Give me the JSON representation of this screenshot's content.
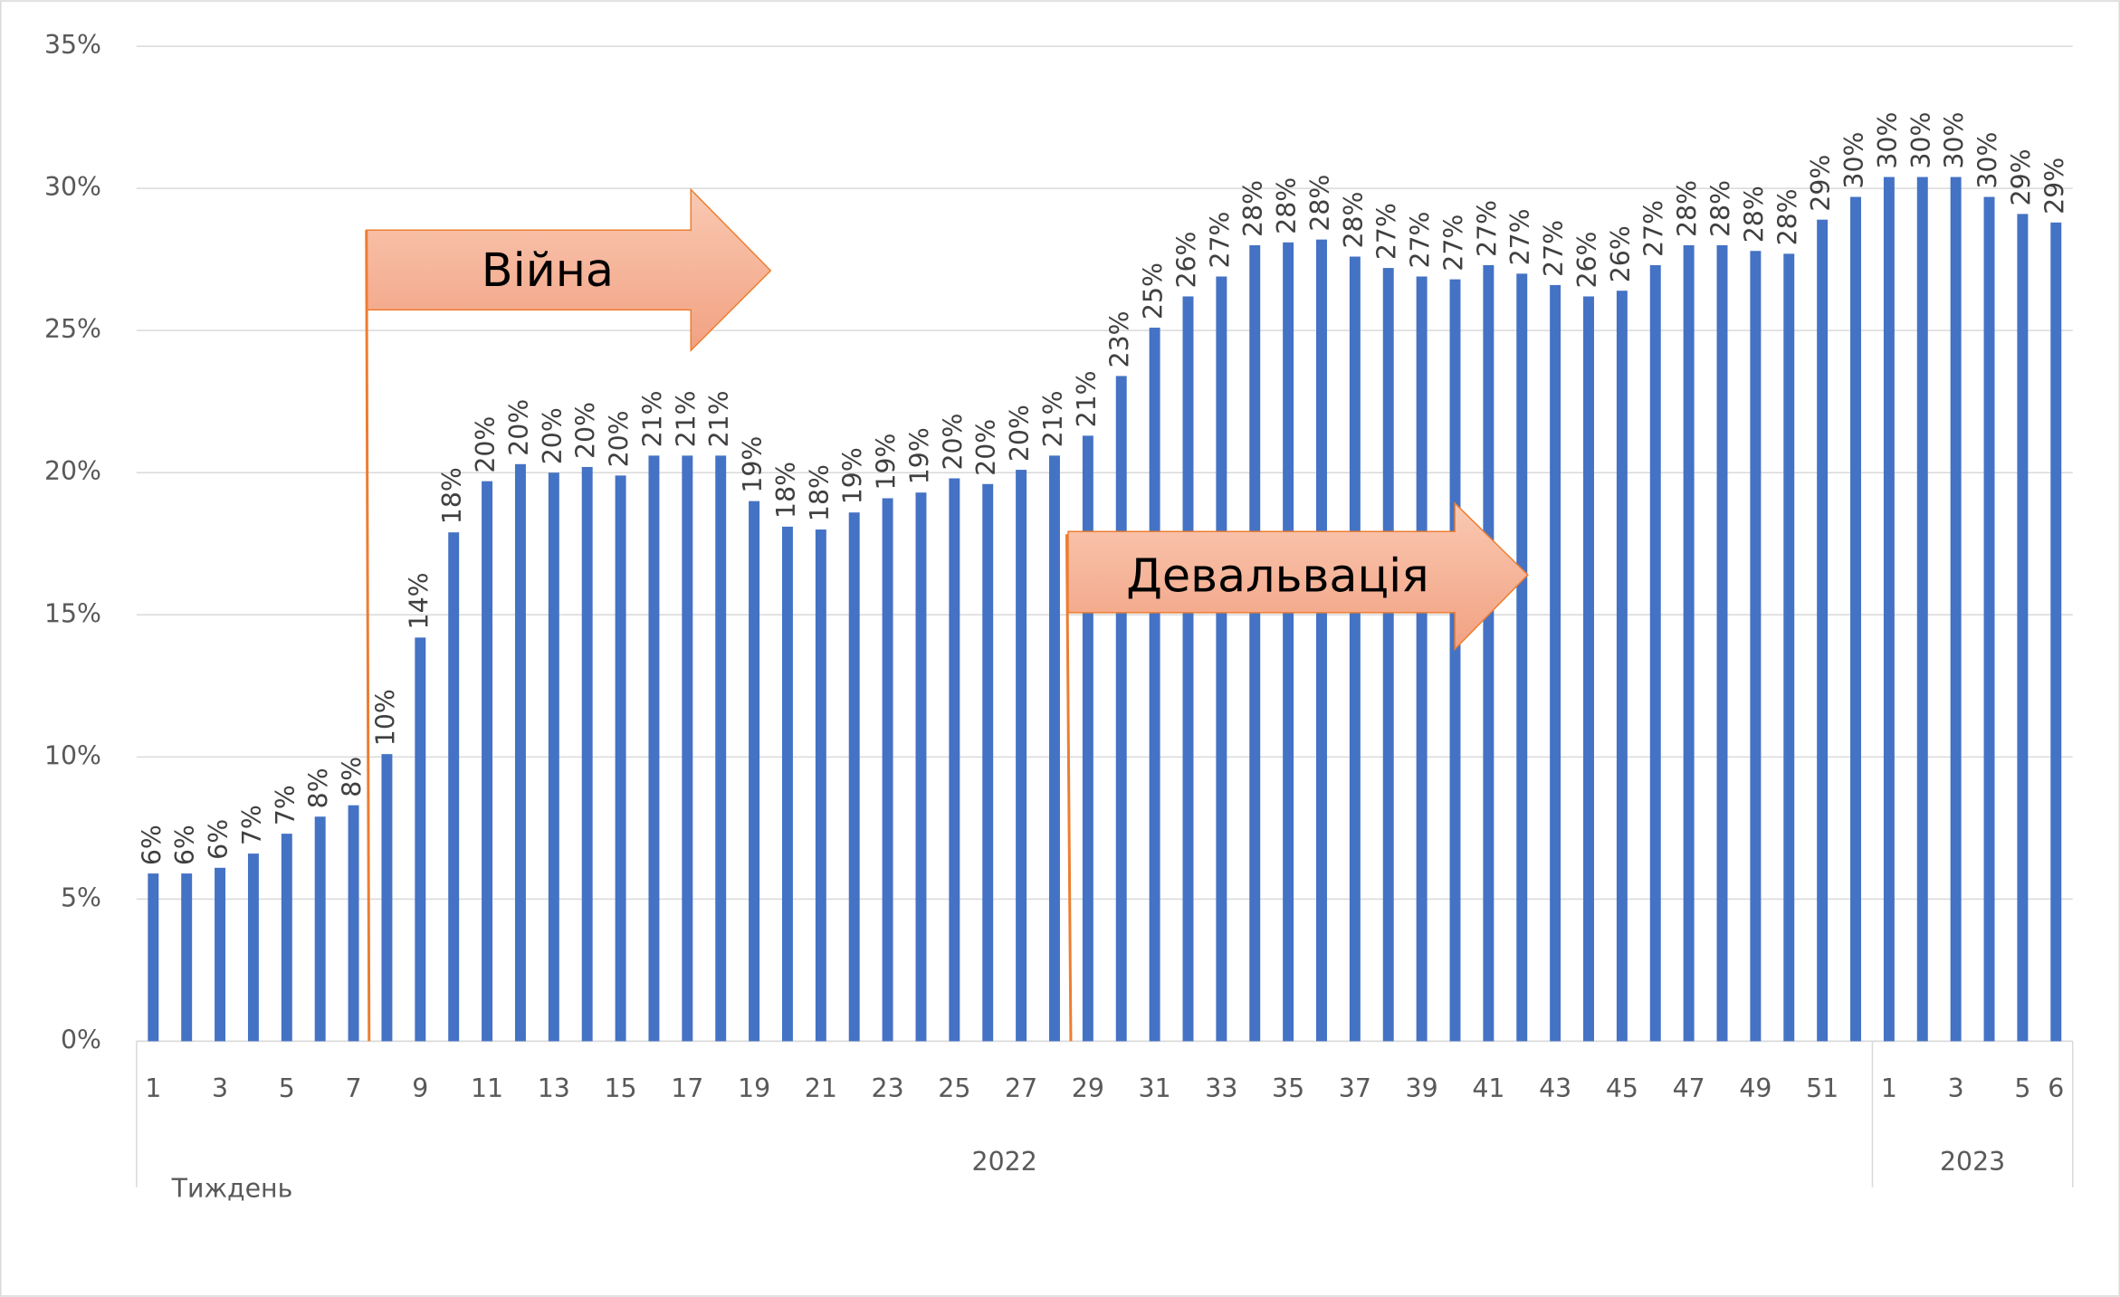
{
  "chart_data": {
    "type": "bar",
    "categories": [
      "1",
      null,
      "3",
      null,
      "5",
      null,
      "7",
      null,
      "9",
      null,
      "11",
      null,
      "13",
      null,
      "15",
      null,
      "17",
      null,
      "19",
      null,
      "21",
      null,
      "23",
      null,
      "25",
      null,
      "27",
      null,
      "29",
      null,
      "31",
      null,
      "33",
      null,
      "35",
      null,
      "37",
      null,
      "39",
      null,
      "41",
      null,
      "43",
      null,
      "45",
      null,
      "47",
      null,
      "49",
      null,
      "51",
      null,
      "1",
      null,
      "3",
      null,
      "5",
      "6"
    ],
    "values": [
      5.9,
      5.9,
      6.1,
      6.6,
      7.3,
      7.9,
      8.3,
      10.1,
      14.2,
      17.9,
      19.7,
      20.3,
      20.0,
      20.2,
      19.9,
      20.6,
      20.6,
      20.6,
      19.0,
      18.1,
      18.0,
      18.6,
      19.1,
      19.3,
      19.8,
      19.6,
      20.1,
      20.6,
      21.3,
      23.4,
      25.1,
      26.2,
      26.9,
      28.0,
      28.1,
      28.2,
      27.6,
      27.2,
      26.9,
      26.8,
      27.3,
      27.0,
      26.6,
      26.2,
      26.4,
      27.3,
      28.0,
      28.0,
      27.8,
      27.7,
      28.9,
      29.7,
      30.4,
      30.4,
      30.4,
      29.7,
      29.1,
      28.8
    ],
    "value_labels": [
      "6%",
      "6%",
      "6%",
      "7%",
      "7%",
      "8%",
      "8%",
      "10%",
      "14%",
      "18%",
      "20%",
      "20%",
      "20%",
      "20%",
      "20%",
      "21%",
      "21%",
      "21%",
      "19%",
      "18%",
      "18%",
      "19%",
      "19%",
      "19%",
      "20%",
      "20%",
      "20%",
      "21%",
      "21%",
      "23%",
      "25%",
      "26%",
      "27%",
      "28%",
      "28%",
      "28%",
      "28%",
      "27%",
      "27%",
      "27%",
      "27%",
      "27%",
      "27%",
      "26%",
      "26%",
      "27%",
      "28%",
      "28%",
      "28%",
      "28%",
      "29%",
      "30%",
      "30%",
      "30%",
      "30%",
      "30%",
      "29%",
      "29%"
    ],
    "groups": [
      {
        "label": "2022",
        "size": 52
      },
      {
        "label": "2023",
        "size": 6
      }
    ],
    "xlabel": "Тиждень",
    "color": "#4472c4",
    "ylim": [
      0,
      35
    ],
    "yticks": [
      {
        "value": 0,
        "label": "0%"
      },
      {
        "value": 5,
        "label": "5%"
      },
      {
        "value": 10,
        "label": "10%"
      },
      {
        "value": 15,
        "label": "15%"
      },
      {
        "value": 20,
        "label": "20%"
      },
      {
        "value": 25,
        "label": "25%"
      },
      {
        "value": 30,
        "label": "30%"
      },
      {
        "value": 35,
        "label": "35%"
      }
    ],
    "grid": true,
    "annotations": [
      "Війна",
      "Девальвація"
    ]
  }
}
